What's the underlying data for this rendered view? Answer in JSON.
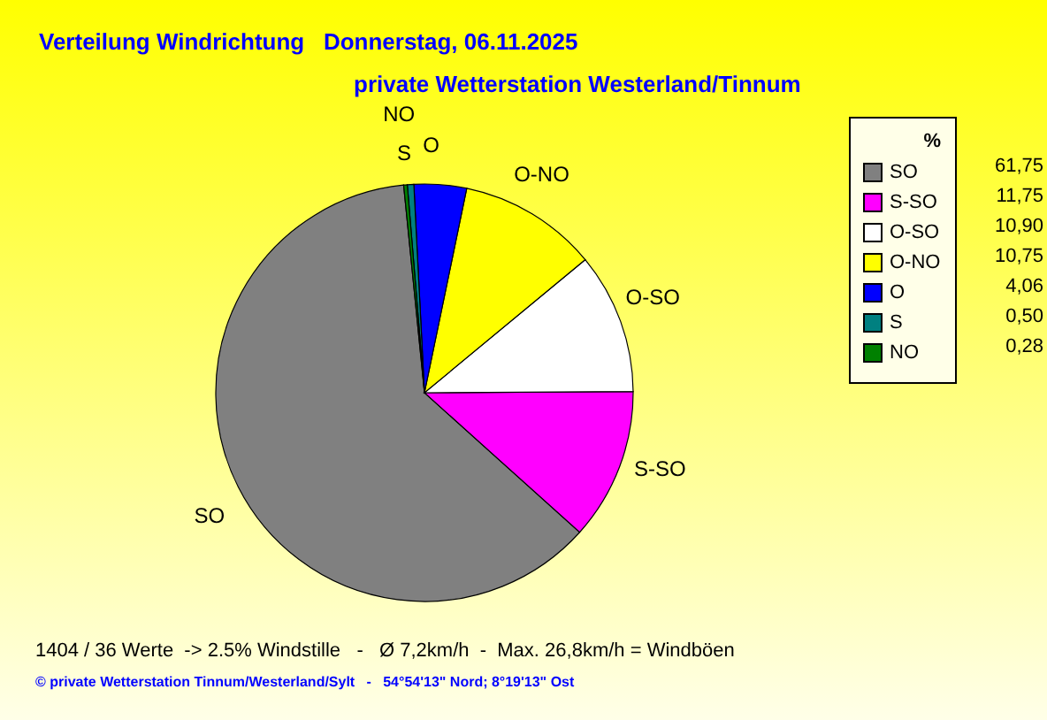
{
  "chart_data": {
    "type": "pie",
    "title": "Verteilung Windrichtung   Donnerstag, 06.11.2025",
    "subtitle": "private Wetterstation Westerland/Tinnum",
    "legend_title": "%",
    "legend": "top right",
    "categories": [
      "SO",
      "S-SO",
      "O-SO",
      "O-NO",
      "O",
      "S",
      "NO"
    ],
    "values": [
      61.75,
      11.75,
      10.9,
      10.75,
      4.06,
      0.5,
      0.28
    ],
    "value_labels": [
      "61,75",
      "11,75",
      "10,90",
      "10,75",
      "4,06",
      "0,50",
      "0,28"
    ],
    "colors": [
      "#808080",
      "#ff00ff",
      "#ffffff",
      "#ffff00",
      "#0000ff",
      "#008080",
      "#008000"
    ],
    "annotations": [
      "1404 / 36 Werte  -> 2.5% Windstille   -   Ø 7,2km/h  -  Max. 26,8km/h = Windböen",
      "© private Wetterstation Tinnum/Westerland/Sylt   -   54°54'13\" Nord; 8°19'13\" Ost"
    ]
  }
}
